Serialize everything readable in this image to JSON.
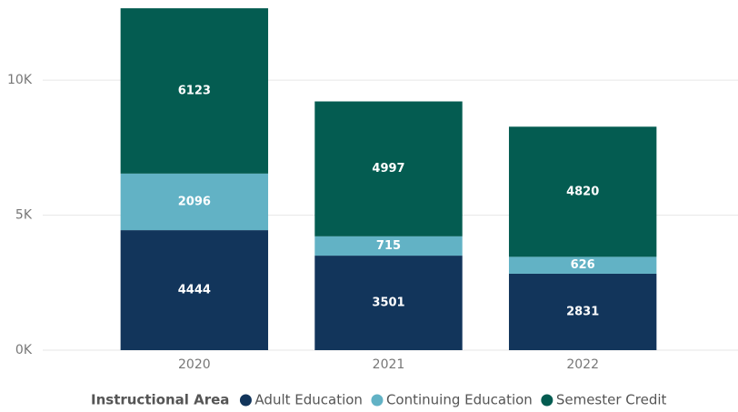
{
  "chart_data": {
    "type": "stacked_bar",
    "categories": [
      "2020",
      "2021",
      "2022"
    ],
    "legend_title": "Instructional Area",
    "series": [
      {
        "name": "Adult Education",
        "color": "#12355b",
        "values": [
          4444,
          3501,
          2831
        ]
      },
      {
        "name": "Continuing Education",
        "color": "#62b2c5",
        "values": [
          2096,
          715,
          626
        ]
      },
      {
        "name": "Semester Credit",
        "color": "#045c51",
        "values": [
          6123,
          4997,
          4820
        ]
      }
    ],
    "ylim": [
      0,
      12700
    ],
    "yticks": [
      {
        "value": 0,
        "label": "0K"
      },
      {
        "value": 5000,
        "label": "5K"
      },
      {
        "value": 10000,
        "label": "10K"
      }
    ],
    "grid": true,
    "legend": "bottom"
  }
}
